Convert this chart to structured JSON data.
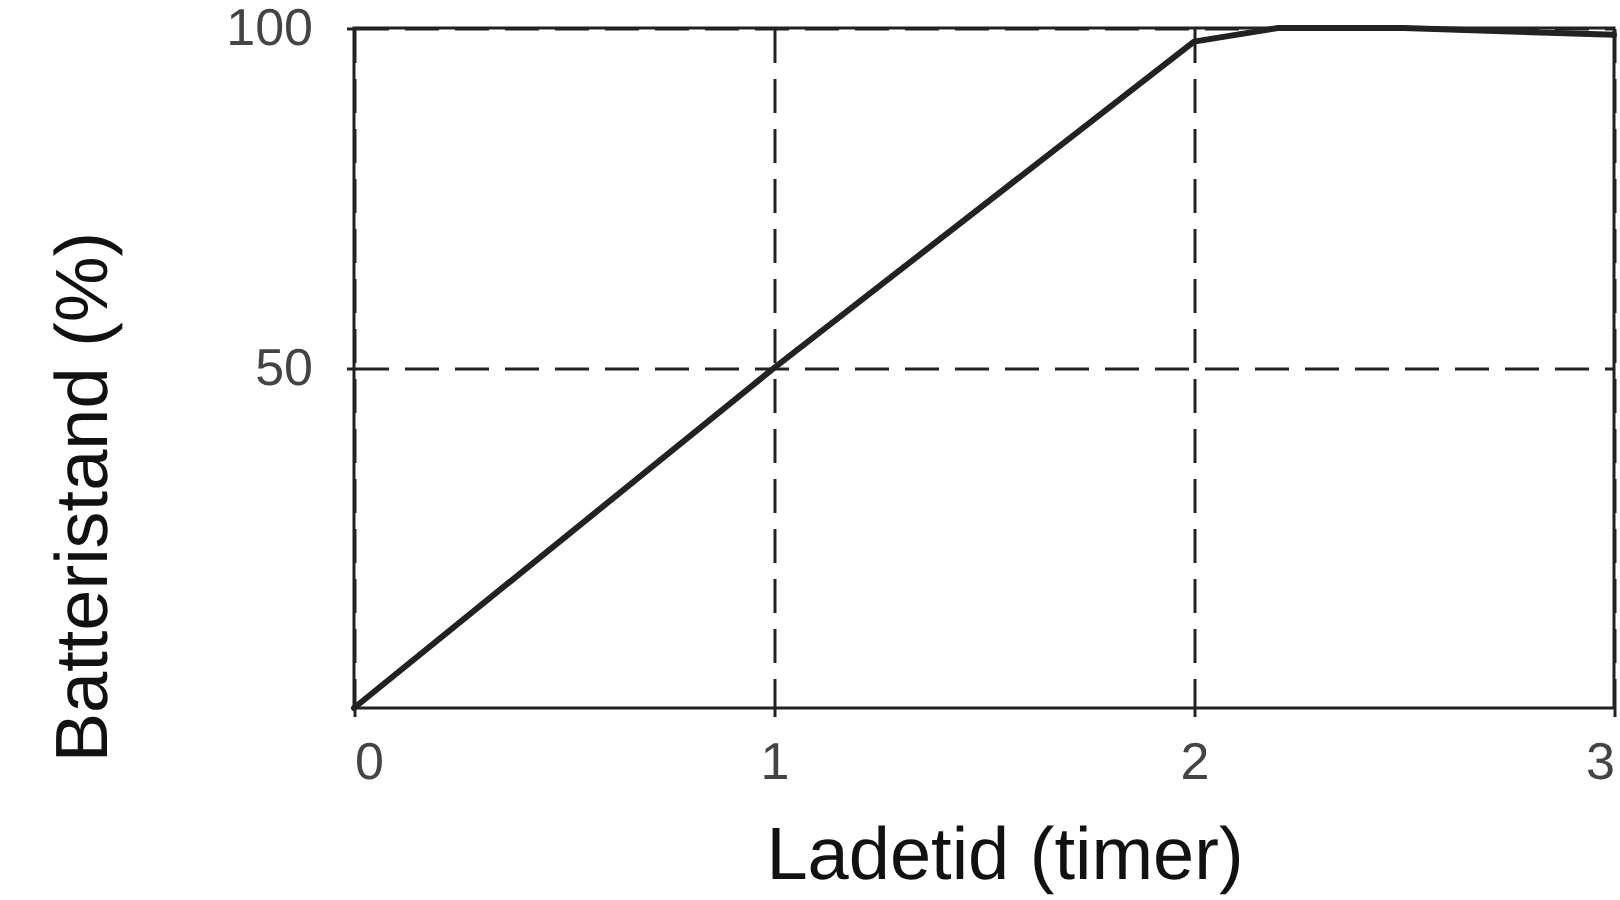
{
  "chart_data": {
    "type": "line",
    "xlabel": "Ladetid (timer)",
    "ylabel": "Batteristand (%)",
    "x": [
      0,
      1,
      2,
      2.2,
      2.5,
      3
    ],
    "values": [
      0,
      50,
      98,
      100,
      100,
      99
    ],
    "color": "#222222",
    "xlim": [
      0,
      3
    ],
    "ylim": [
      0,
      100
    ],
    "xticks": [
      0,
      1,
      2,
      3
    ],
    "yticks": [
      50,
      100
    ],
    "grid": true,
    "line_style": "solid"
  }
}
